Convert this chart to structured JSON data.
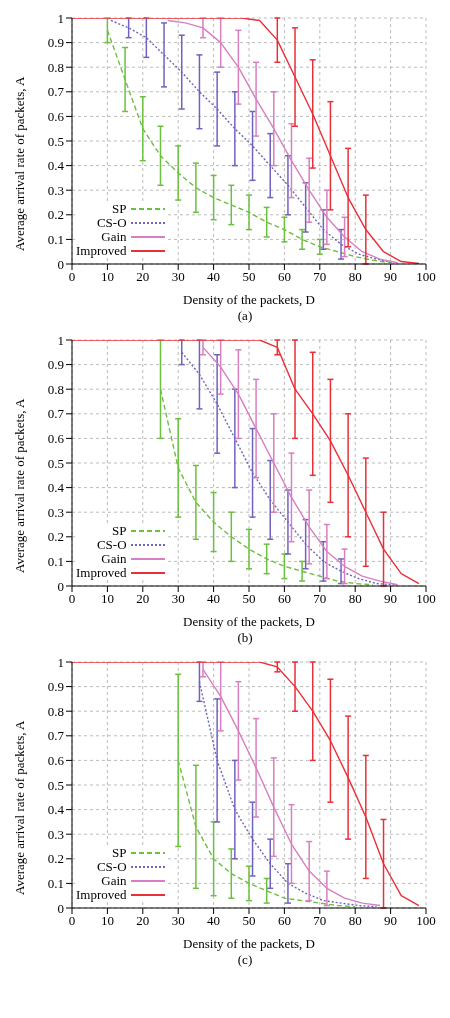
{
  "chart_data": [
    {
      "type": "line",
      "xlabel": "Density of the packets, D",
      "ylabel": "Average arrival rate of packets, A",
      "annotations": [
        "(a)"
      ],
      "xlim": [
        0,
        100
      ],
      "xticks": [
        0,
        10,
        20,
        30,
        40,
        50,
        60,
        70,
        80,
        90,
        100
      ],
      "ylim": [
        0,
        1
      ],
      "yticks": [
        0,
        0.1,
        0.2,
        0.3,
        0.4,
        0.5,
        0.6,
        0.7,
        0.8,
        0.9,
        1
      ],
      "grid": true,
      "legend": "bottom left",
      "marker": "none",
      "series": [
        {
          "name": "SP",
          "color": "#6cbf3f",
          "line_style": "dashed",
          "x": [
            10,
            15,
            20,
            25,
            30,
            35,
            40,
            45,
            50,
            55,
            60,
            65,
            70,
            75,
            80,
            85,
            90
          ],
          "values": [
            0.95,
            0.75,
            0.55,
            0.44,
            0.37,
            0.31,
            0.27,
            0.24,
            0.21,
            0.17,
            0.14,
            0.1,
            0.07,
            0.05,
            0.03,
            0.015,
            0.005
          ],
          "errors": [
            0.05,
            0.13,
            0.13,
            0.12,
            0.11,
            0.1,
            0.09,
            0.08,
            0.07,
            0.06,
            0.05,
            0.04,
            0.03,
            null,
            null,
            null,
            null
          ]
        },
        {
          "name": "CS-O",
          "color": "#6f63c0",
          "line_style": "dotted",
          "x": [
            11,
            16,
            21,
            26,
            31,
            36,
            41,
            46,
            51,
            56,
            61,
            66,
            71,
            76,
            81,
            86,
            91
          ],
          "values": [
            0.99,
            0.96,
            0.92,
            0.85,
            0.78,
            0.7,
            0.63,
            0.55,
            0.48,
            0.4,
            0.32,
            0.23,
            0.14,
            0.08,
            0.04,
            0.02,
            0.005
          ],
          "errors": [
            null,
            0.04,
            0.08,
            0.13,
            0.15,
            0.15,
            0.15,
            0.15,
            0.14,
            0.13,
            0.12,
            0.1,
            0.08,
            0.06,
            null,
            null,
            null
          ]
        },
        {
          "name": "Gain",
          "color": "#d77fc0",
          "line_style": "solid",
          "x": [
            27,
            32,
            37,
            42,
            47,
            52,
            57,
            62,
            67,
            72,
            77,
            82,
            87,
            92
          ],
          "values": [
            0.99,
            0.98,
            0.96,
            0.9,
            0.8,
            0.67,
            0.55,
            0.42,
            0.3,
            0.19,
            0.11,
            0.05,
            0.02,
            0.005
          ],
          "errors": [
            null,
            null,
            0.04,
            0.1,
            0.15,
            0.15,
            0.15,
            0.15,
            0.13,
            0.11,
            0.08,
            null,
            null,
            null
          ]
        },
        {
          "name": "Improved",
          "color": "#e8303a",
          "line_style": "solid",
          "x": [
            0,
            8,
            13,
            18,
            23,
            28,
            33,
            38,
            43,
            48,
            53,
            58,
            63,
            68,
            73,
            78,
            83,
            88,
            93,
            98
          ],
          "values": [
            1,
            1,
            1,
            1,
            1,
            1,
            1,
            1,
            1,
            1,
            0.99,
            0.91,
            0.76,
            0.61,
            0.44,
            0.27,
            0.14,
            0.05,
            0.01,
            0.002
          ],
          "errors": [
            null,
            null,
            null,
            null,
            null,
            null,
            null,
            null,
            null,
            null,
            null,
            0.09,
            0.2,
            0.22,
            0.22,
            0.2,
            0.14,
            null,
            null,
            null
          ]
        }
      ]
    },
    {
      "type": "line",
      "xlabel": "Density of the packets, D",
      "ylabel": "Average arrival rate of packets, A",
      "annotations": [
        "(b)"
      ],
      "xlim": [
        0,
        100
      ],
      "xticks": [
        0,
        10,
        20,
        30,
        40,
        50,
        60,
        70,
        80,
        90,
        100
      ],
      "ylim": [
        0,
        1
      ],
      "yticks": [
        0,
        0.1,
        0.2,
        0.3,
        0.4,
        0.5,
        0.6,
        0.7,
        0.8,
        0.9,
        1
      ],
      "grid": true,
      "legend": "bottom left",
      "marker": "none",
      "series": [
        {
          "name": "SP",
          "color": "#6cbf3f",
          "line_style": "dashed",
          "x": [
            25,
            30,
            35,
            40,
            45,
            50,
            55,
            60,
            65,
            70,
            75,
            80,
            85
          ],
          "values": [
            0.8,
            0.48,
            0.34,
            0.26,
            0.2,
            0.15,
            0.11,
            0.08,
            0.06,
            0.04,
            0.02,
            0.01,
            0.005
          ],
          "errors": [
            0.2,
            0.2,
            0.15,
            0.12,
            0.1,
            0.08,
            0.06,
            0.05,
            0.04,
            null,
            null,
            null,
            null
          ]
        },
        {
          "name": "CS-O",
          "color": "#6f63c0",
          "line_style": "dotted",
          "x": [
            31,
            36,
            41,
            46,
            51,
            56,
            61,
            66,
            71,
            76,
            81,
            86,
            91
          ],
          "values": [
            0.95,
            0.86,
            0.74,
            0.6,
            0.46,
            0.35,
            0.26,
            0.17,
            0.1,
            0.06,
            0.03,
            0.01,
            0.005
          ],
          "errors": [
            0.05,
            0.14,
            0.2,
            0.2,
            0.18,
            0.16,
            0.13,
            0.1,
            0.08,
            0.05,
            null,
            null,
            null
          ]
        },
        {
          "name": "Gain",
          "color": "#d77fc0",
          "line_style": "solid",
          "x": [
            37,
            42,
            47,
            52,
            57,
            62,
            67,
            72,
            77,
            82,
            87,
            92
          ],
          "values": [
            0.97,
            0.89,
            0.78,
            0.64,
            0.5,
            0.36,
            0.24,
            0.14,
            0.08,
            0.04,
            0.02,
            0.005
          ],
          "errors": [
            0.03,
            0.11,
            0.18,
            0.2,
            0.2,
            0.18,
            0.15,
            0.11,
            0.07,
            null,
            null,
            null
          ]
        },
        {
          "name": "Improved",
          "color": "#e8303a",
          "line_style": "solid",
          "x": [
            0,
            8,
            13,
            18,
            23,
            28,
            33,
            38,
            43,
            48,
            53,
            58,
            63,
            68,
            73,
            78,
            83,
            88,
            93,
            98
          ],
          "values": [
            1,
            1,
            1,
            1,
            1,
            1,
            1,
            1,
            1,
            1,
            1,
            0.97,
            0.8,
            0.7,
            0.59,
            0.45,
            0.3,
            0.15,
            0.05,
            0.01
          ],
          "errors": [
            null,
            null,
            null,
            null,
            null,
            null,
            null,
            null,
            null,
            null,
            null,
            0.03,
            0.2,
            0.25,
            0.25,
            0.25,
            0.22,
            0.15,
            null,
            null
          ]
        }
      ]
    },
    {
      "type": "line",
      "xlabel": "Density of the packets, D",
      "ylabel": "Average arrival rate of packets, A",
      "annotations": [
        "(c)"
      ],
      "xlim": [
        0,
        100
      ],
      "xticks": [
        0,
        10,
        20,
        30,
        40,
        50,
        60,
        70,
        80,
        90,
        100
      ],
      "ylim": [
        0,
        1
      ],
      "yticks": [
        0,
        0.1,
        0.2,
        0.3,
        0.4,
        0.5,
        0.6,
        0.7,
        0.8,
        0.9,
        1
      ],
      "grid": true,
      "legend": "bottom left",
      "marker": "none",
      "series": [
        {
          "name": "SP",
          "color": "#6cbf3f",
          "line_style": "dashed",
          "x": [
            30,
            35,
            40,
            45,
            50,
            55,
            60,
            65,
            70,
            75,
            80
          ],
          "values": [
            0.6,
            0.33,
            0.2,
            0.14,
            0.1,
            0.07,
            0.04,
            0.03,
            0.02,
            0.01,
            0.005
          ],
          "errors": [
            0.35,
            0.25,
            0.15,
            0.1,
            0.07,
            0.05,
            null,
            null,
            null,
            null,
            null
          ]
        },
        {
          "name": "CS-O",
          "color": "#6f63c0",
          "line_style": "dotted",
          "x": [
            36,
            41,
            46,
            51,
            56,
            61,
            66,
            71,
            76,
            81,
            86
          ],
          "values": [
            0.92,
            0.6,
            0.4,
            0.28,
            0.18,
            0.1,
            0.06,
            0.03,
            0.02,
            0.01,
            0.005
          ],
          "errors": [
            0.08,
            0.25,
            0.2,
            0.15,
            0.1,
            0.08,
            null,
            null,
            null,
            null,
            null
          ]
        },
        {
          "name": "Gain",
          "color": "#d77fc0",
          "line_style": "solid",
          "x": [
            37,
            42,
            47,
            52,
            57,
            62,
            67,
            72,
            77,
            82,
            87
          ],
          "values": [
            0.97,
            0.86,
            0.72,
            0.57,
            0.41,
            0.26,
            0.15,
            0.08,
            0.04,
            0.02,
            0.01
          ],
          "errors": [
            0.03,
            0.14,
            0.2,
            0.2,
            0.2,
            0.16,
            0.12,
            0.07,
            null,
            null,
            null
          ]
        },
        {
          "name": "Improved",
          "color": "#e8303a",
          "line_style": "solid",
          "x": [
            0,
            8,
            13,
            18,
            23,
            28,
            33,
            38,
            43,
            48,
            53,
            58,
            63,
            68,
            73,
            78,
            83,
            88,
            93,
            98
          ],
          "values": [
            1,
            1,
            1,
            1,
            1,
            1,
            1,
            1,
            1,
            1,
            1,
            0.98,
            0.9,
            0.8,
            0.68,
            0.53,
            0.37,
            0.18,
            0.05,
            0.01
          ],
          "errors": [
            null,
            null,
            null,
            null,
            null,
            null,
            null,
            null,
            null,
            null,
            null,
            0.02,
            0.1,
            0.2,
            0.25,
            0.25,
            0.25,
            0.18,
            null,
            null
          ]
        }
      ]
    }
  ]
}
